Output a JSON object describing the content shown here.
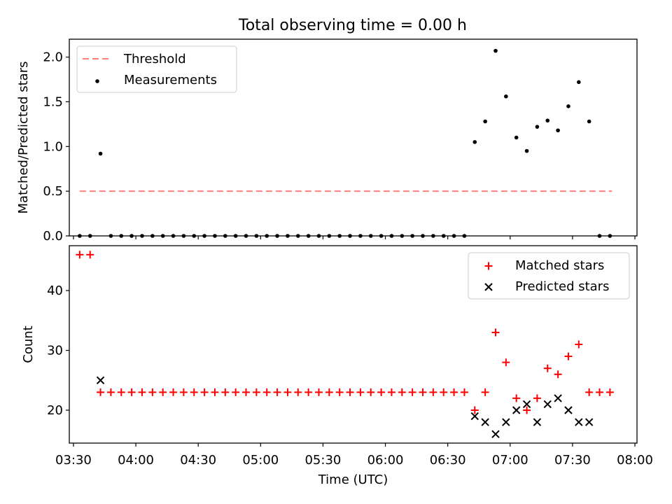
{
  "chart_data": [
    {
      "type": "scatter",
      "title": "Total observing time = 0.00 h",
      "ylabel": "Matched/Predicted stars",
      "ylim": [
        0,
        2.2
      ],
      "yticks": [
        "0.0",
        "0.5",
        "1.0",
        "1.5",
        "2.0"
      ],
      "yticks_values": [
        0,
        0.5,
        1.0,
        1.5,
        2.0
      ],
      "xlim": [
        "03:28",
        "08:01"
      ],
      "legend_position": "top-left",
      "threshold": {
        "name": "Threshold",
        "value": 0.5,
        "x_start": "03:33",
        "x_end": "07:49",
        "color": "#ff7f7f",
        "style": "dashed"
      },
      "series": [
        {
          "name": "Measurements",
          "color": "#000000",
          "marker": "dot",
          "points": [
            [
              "03:33",
              0
            ],
            [
              "03:38",
              0
            ],
            [
              "03:43",
              0.92
            ],
            [
              "03:48",
              0
            ],
            [
              "03:53",
              0
            ],
            [
              "03:58",
              0
            ],
            [
              "04:03",
              0
            ],
            [
              "04:08",
              0
            ],
            [
              "04:13",
              0
            ],
            [
              "04:18",
              0
            ],
            [
              "04:23",
              0
            ],
            [
              "04:28",
              0
            ],
            [
              "04:33",
              0
            ],
            [
              "04:38",
              0
            ],
            [
              "04:43",
              0
            ],
            [
              "04:48",
              0
            ],
            [
              "04:53",
              0
            ],
            [
              "04:58",
              0
            ],
            [
              "05:03",
              0
            ],
            [
              "05:08",
              0
            ],
            [
              "05:13",
              0
            ],
            [
              "05:18",
              0
            ],
            [
              "05:23",
              0
            ],
            [
              "05:28",
              0
            ],
            [
              "05:33",
              0
            ],
            [
              "05:38",
              0
            ],
            [
              "05:43",
              0
            ],
            [
              "05:48",
              0
            ],
            [
              "05:53",
              0
            ],
            [
              "05:58",
              0
            ],
            [
              "06:03",
              0
            ],
            [
              "06:08",
              0
            ],
            [
              "06:13",
              0
            ],
            [
              "06:18",
              0
            ],
            [
              "06:23",
              0
            ],
            [
              "06:28",
              0
            ],
            [
              "06:33",
              0
            ],
            [
              "06:38",
              0
            ],
            [
              "06:43",
              1.05
            ],
            [
              "06:48",
              1.28
            ],
            [
              "06:53",
              2.07
            ],
            [
              "06:58",
              1.56
            ],
            [
              "07:03",
              1.1
            ],
            [
              "07:08",
              0.95
            ],
            [
              "07:13",
              1.22
            ],
            [
              "07:18",
              1.29
            ],
            [
              "07:23",
              1.18
            ],
            [
              "07:28",
              1.45
            ],
            [
              "07:33",
              1.72
            ],
            [
              "07:38",
              1.28
            ],
            [
              "07:43",
              0
            ],
            [
              "07:48",
              0
            ]
          ]
        }
      ]
    },
    {
      "type": "scatter",
      "xlabel": "Time (UTC)",
      "ylabel": "Count",
      "ylim": [
        14.5,
        47.5
      ],
      "yticks": [
        "20",
        "30",
        "40"
      ],
      "yticks_values": [
        20,
        30,
        40
      ],
      "xlim": [
        "03:28",
        "08:01"
      ],
      "xticks": [
        "03:30",
        "04:00",
        "04:30",
        "05:00",
        "05:30",
        "06:00",
        "06:30",
        "07:00",
        "07:30",
        "08:00"
      ],
      "legend_position": "top-right",
      "series": [
        {
          "name": "Matched stars",
          "color": "#ff0000",
          "marker": "plus",
          "points": [
            [
              "03:33",
              46
            ],
            [
              "03:38",
              46
            ],
            [
              "03:43",
              23
            ],
            [
              "03:48",
              23
            ],
            [
              "03:53",
              23
            ],
            [
              "03:58",
              23
            ],
            [
              "04:03",
              23
            ],
            [
              "04:08",
              23
            ],
            [
              "04:13",
              23
            ],
            [
              "04:18",
              23
            ],
            [
              "04:23",
              23
            ],
            [
              "04:28",
              23
            ],
            [
              "04:33",
              23
            ],
            [
              "04:38",
              23
            ],
            [
              "04:43",
              23
            ],
            [
              "04:48",
              23
            ],
            [
              "04:53",
              23
            ],
            [
              "04:58",
              23
            ],
            [
              "05:03",
              23
            ],
            [
              "05:08",
              23
            ],
            [
              "05:13",
              23
            ],
            [
              "05:18",
              23
            ],
            [
              "05:23",
              23
            ],
            [
              "05:28",
              23
            ],
            [
              "05:33",
              23
            ],
            [
              "05:38",
              23
            ],
            [
              "05:43",
              23
            ],
            [
              "05:48",
              23
            ],
            [
              "05:53",
              23
            ],
            [
              "05:58",
              23
            ],
            [
              "06:03",
              23
            ],
            [
              "06:08",
              23
            ],
            [
              "06:13",
              23
            ],
            [
              "06:18",
              23
            ],
            [
              "06:23",
              23
            ],
            [
              "06:28",
              23
            ],
            [
              "06:33",
              23
            ],
            [
              "06:38",
              23
            ],
            [
              "06:43",
              20
            ],
            [
              "06:48",
              23
            ],
            [
              "06:53",
              33
            ],
            [
              "06:58",
              28
            ],
            [
              "07:03",
              22
            ],
            [
              "07:08",
              20
            ],
            [
              "07:13",
              22
            ],
            [
              "07:18",
              27
            ],
            [
              "07:23",
              26
            ],
            [
              "07:28",
              29
            ],
            [
              "07:33",
              31
            ],
            [
              "07:38",
              23
            ],
            [
              "07:43",
              23
            ],
            [
              "07:48",
              23
            ]
          ]
        },
        {
          "name": "Predicted stars",
          "color": "#000000",
          "marker": "x",
          "points": [
            [
              "03:43",
              25
            ],
            [
              "06:43",
              19
            ],
            [
              "06:48",
              18
            ],
            [
              "06:53",
              16
            ],
            [
              "06:58",
              18
            ],
            [
              "07:03",
              20
            ],
            [
              "07:08",
              21
            ],
            [
              "07:13",
              18
            ],
            [
              "07:18",
              21
            ],
            [
              "07:23",
              22
            ],
            [
              "07:28",
              20
            ],
            [
              "07:33",
              18
            ],
            [
              "07:38",
              18
            ]
          ]
        }
      ]
    }
  ]
}
